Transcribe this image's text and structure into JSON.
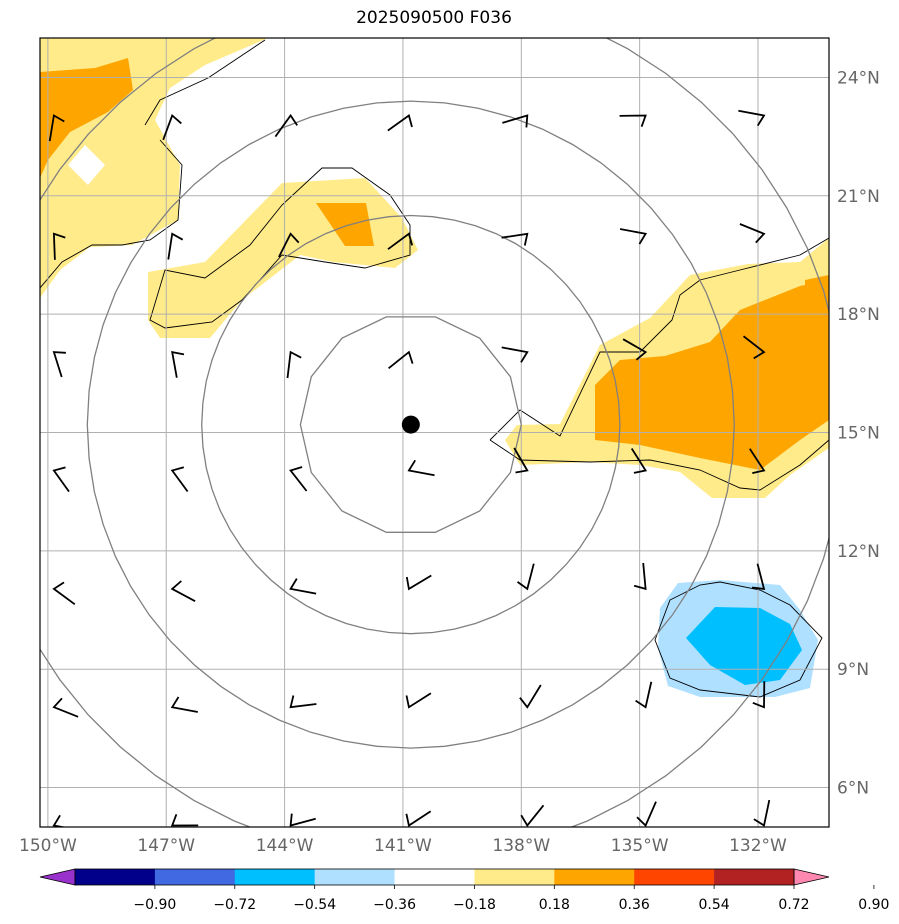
{
  "title": "2025090500 F036",
  "map": {
    "lat_range": [
      5.0,
      25.0
    ],
    "lon_range": [
      -150.2,
      -130.2
    ],
    "center_marker": {
      "lon": -140.8,
      "lat": 15.2
    },
    "lat_ticks": [
      {
        "value": 24,
        "label": "24°N"
      },
      {
        "value": 21,
        "label": "21°N"
      },
      {
        "value": 18,
        "label": "18°N"
      },
      {
        "value": 15,
        "label": "15°N"
      },
      {
        "value": 12,
        "label": "12°N"
      },
      {
        "value": 9,
        "label": "9°N"
      },
      {
        "value": 6,
        "label": "6°N"
      }
    ],
    "lon_ticks": [
      {
        "value": -150,
        "label": "150°W"
      },
      {
        "value": -147,
        "label": "147°W"
      },
      {
        "value": -144,
        "label": "144°W"
      },
      {
        "value": -141,
        "label": "141°W"
      },
      {
        "value": -138,
        "label": "138°W"
      },
      {
        "value": -135,
        "label": "135°W"
      },
      {
        "value": -132,
        "label": "132°W"
      }
    ],
    "range_rings_deg": [
      2.8,
      5.3,
      8.2,
      11.0
    ],
    "colors": {
      "light_yellow": "#ffeb8a",
      "orange": "#ffa500",
      "light_blue": "#b0e0ff",
      "cyan": "#00bfff",
      "grid": "#b0b0b0",
      "ring": "#808080"
    }
  },
  "colorbar": {
    "ticks": [
      "−0.90",
      "−0.72",
      "−0.54",
      "−0.36",
      "−0.18",
      "0.18",
      "0.36",
      "0.54",
      "0.72",
      "0.90"
    ],
    "colors": [
      "#9932cc",
      "#00008b",
      "#4169e1",
      "#00bfff",
      "#b0e0ff",
      "#ffffff",
      "#ffeb8a",
      "#ffa500",
      "#ff4500",
      "#b22222",
      "#ff88b0"
    ]
  }
}
